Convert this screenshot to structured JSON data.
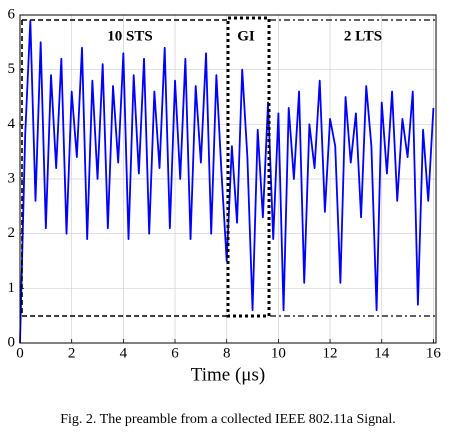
{
  "chart_data": {
    "type": "line",
    "xlabel": "Time (μs)",
    "caption": "Fig. 2.  The preamble from a collected IEEE 802.11a Signal.",
    "annotations": [
      "10 STS",
      "GI",
      "2 LTS"
    ],
    "xlim": [
      0,
      16.1
    ],
    "ylim": [
      0,
      6
    ],
    "xticks": [
      0,
      2,
      4,
      6,
      8,
      10,
      12,
      14,
      16
    ],
    "yticks": [
      0,
      1,
      2,
      3,
      4,
      5,
      6
    ],
    "grid": true,
    "x": [
      0,
      0.2,
      0.4,
      0.6,
      0.8,
      1,
      1.2,
      1.4,
      1.6,
      1.8,
      2,
      2.2,
      2.4,
      2.6,
      2.8,
      3,
      3.2,
      3.4,
      3.6,
      3.8,
      4,
      4.2,
      4.4,
      4.6,
      4.8,
      5,
      5.2,
      5.4,
      5.6,
      5.8,
      6,
      6.2,
      6.4,
      6.6,
      6.8,
      7,
      7.2,
      7.4,
      7.6,
      7.8,
      8,
      8.2,
      8.4,
      8.6,
      8.8,
      9,
      9.2,
      9.4,
      9.6,
      9.8,
      10,
      10.2,
      10.4,
      10.6,
      10.8,
      11,
      11.2,
      11.4,
      11.6,
      11.8,
      12,
      12.2,
      12.4,
      12.6,
      12.8,
      13,
      13.2,
      13.4,
      13.6,
      13.8,
      14,
      14.2,
      14.4,
      14.6,
      14.8,
      15,
      15.2,
      15.4,
      15.6,
      15.8,
      16
    ],
    "series": [
      {
        "color": "#0000ff",
        "values": [
          0,
          3.8,
          5.9,
          2.6,
          5.5,
          2.1,
          4.9,
          3.2,
          5.2,
          2.0,
          4.6,
          3.4,
          5.4,
          1.9,
          4.8,
          3.0,
          5.1,
          2.1,
          4.7,
          3.3,
          5.3,
          1.9,
          4.9,
          3.1,
          5.2,
          2.0,
          4.6,
          3.2,
          5.4,
          2.1,
          4.8,
          3.0,
          5.2,
          1.9,
          4.7,
          3.3,
          5.3,
          2.0,
          4.9,
          3.1,
          1.5,
          3.6,
          2.2,
          5.0,
          3.4,
          0.6,
          3.9,
          2.3,
          4.4,
          1.9,
          4.2,
          0.6,
          4.3,
          3.0,
          4.6,
          1.1,
          4.0,
          3.2,
          4.8,
          2.4,
          4.1,
          3.6,
          1.1,
          4.5,
          3.3,
          4.2,
          2.3,
          4.7,
          3.6,
          0.6,
          4.4,
          3.1,
          4.6,
          2.6,
          4.1,
          3.4,
          4.6,
          0.7,
          3.9,
          2.6,
          4.3
        ]
      }
    ]
  }
}
